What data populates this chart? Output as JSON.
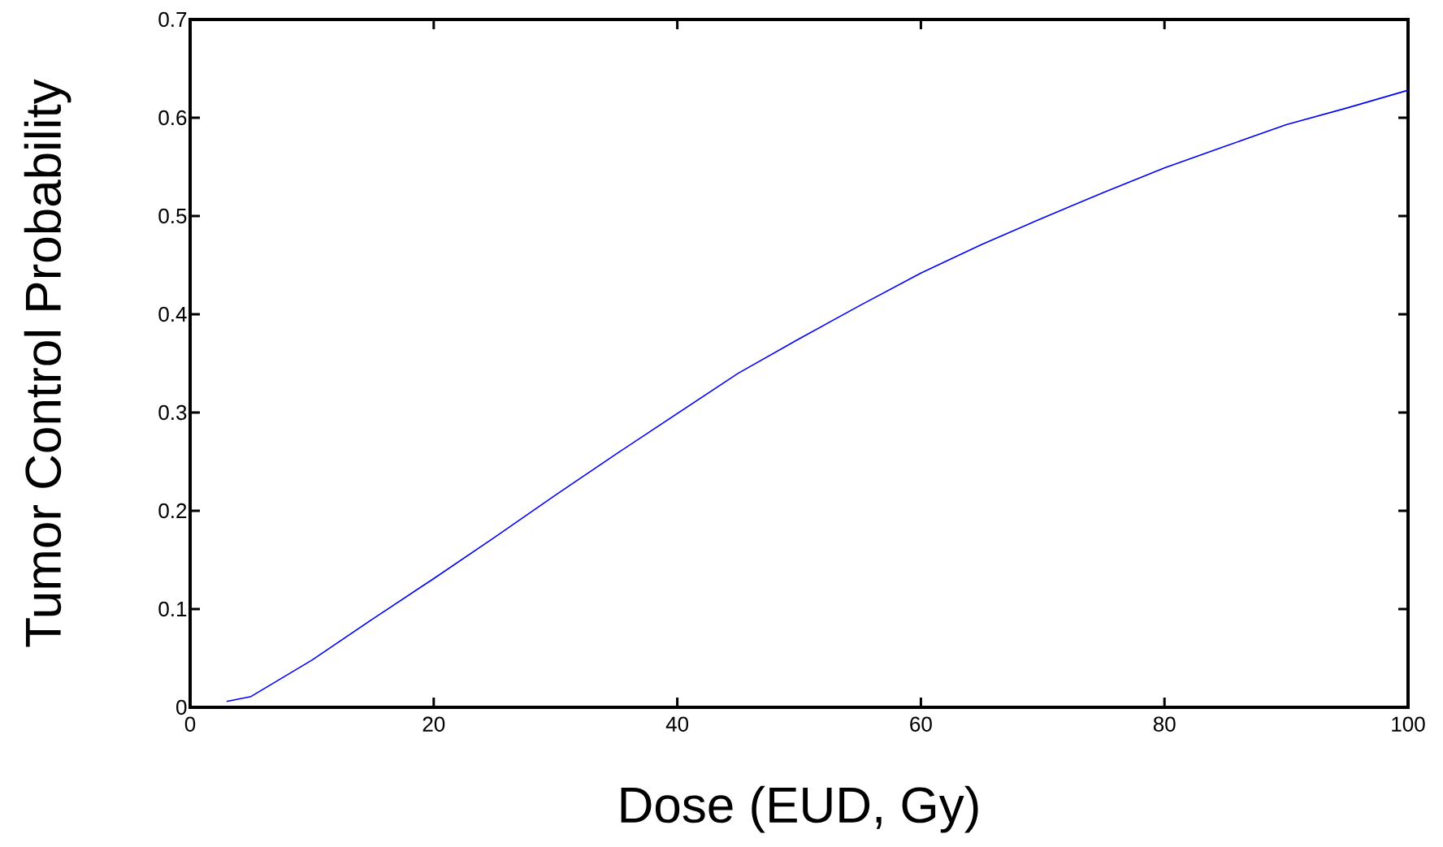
{
  "chart_data": {
    "type": "line",
    "xlabel": "Dose (EUD, Gy)",
    "ylabel": "Tumor Control Probability",
    "x": [
      3,
      5,
      10,
      15,
      20,
      25,
      30,
      35,
      40,
      45,
      50,
      55,
      60,
      65,
      70,
      75,
      80,
      85,
      90,
      95,
      100
    ],
    "series": [
      {
        "color": "#0000ff",
        "values": [
          0.006,
          0.011,
          0.048,
          0.09,
          0.131,
          0.173,
          0.216,
          0.258,
          0.299,
          0.34,
          0.375,
          0.409,
          0.442,
          0.471,
          0.498,
          0.524,
          0.549,
          0.571,
          0.593,
          0.61,
          0.628
        ]
      }
    ],
    "xlim": [
      0,
      100
    ],
    "ylim": [
      0,
      0.7
    ],
    "xticks": [
      0,
      20,
      40,
      60,
      80,
      100
    ],
    "yticks": [
      0,
      0.1,
      0.2,
      0.3,
      0.4,
      0.5,
      0.6,
      0.7
    ],
    "grid": false,
    "marker": "none",
    "line_style": "solid"
  }
}
